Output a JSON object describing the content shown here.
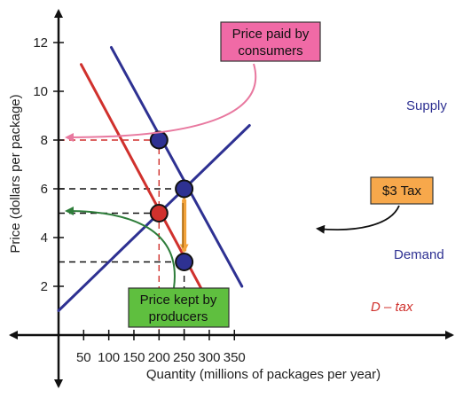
{
  "chart_data": {
    "type": "line",
    "xlabel": "Quantity (millions of packages per year)",
    "ylabel": "Price (dollars per package)",
    "xlim": [
      0,
      380
    ],
    "ylim": [
      0,
      13
    ],
    "x_ticks": [
      50,
      100,
      150,
      200,
      250,
      300,
      350
    ],
    "y_ticks": [
      2,
      4,
      6,
      8,
      10,
      12
    ],
    "series": [
      {
        "name": "Supply",
        "color": "#2e3192",
        "points": [
          [
            0,
            1
          ],
          [
            380,
            8.6
          ]
        ]
      },
      {
        "name": "Demand",
        "color": "#2e3192",
        "points": [
          [
            105,
            11.8
          ],
          [
            365,
            2.0
          ]
        ]
      },
      {
        "name": "D – tax",
        "color": "#d0312d",
        "points": [
          [
            45,
            11.1
          ],
          [
            305,
            1.1
          ]
        ]
      }
    ],
    "points": [
      {
        "x": 200,
        "y": 8,
        "fill": "#2e3192"
      },
      {
        "x": 200,
        "y": 5,
        "fill": "#d0312d"
      },
      {
        "x": 250,
        "y": 6,
        "fill": "#2e3192"
      },
      {
        "x": 250,
        "y": 3,
        "fill": "#2e3192"
      }
    ],
    "guides": [
      {
        "from": [
          0,
          8
        ],
        "to": [
          200,
          8
        ],
        "color": "#d0312d"
      },
      {
        "from": [
          200,
          0
        ],
        "to": [
          200,
          8
        ],
        "color": "#d0312d"
      },
      {
        "from": [
          0,
          6
        ],
        "to": [
          250,
          6
        ],
        "color": "#111111"
      },
      {
        "from": [
          0,
          5
        ],
        "to": [
          200,
          5
        ],
        "color": "#111111"
      },
      {
        "from": [
          0,
          3
        ],
        "to": [
          250,
          3
        ],
        "color": "#111111"
      },
      {
        "from": [
          250,
          0
        ],
        "to": [
          250,
          3
        ],
        "color": "#111111"
      }
    ],
    "tax_arrow": {
      "x": 250,
      "from": 6,
      "to": 3,
      "color": "#f3a33b"
    },
    "annotations": [
      {
        "id": "price-paid",
        "text": "Price paid by consumers",
        "lines": [
          "Price paid by",
          "consumers"
        ],
        "fill": "#f06aa6"
      },
      {
        "id": "price-kept",
        "text": "Price kept by producers",
        "lines": [
          "Price kept by",
          "producers"
        ],
        "fill": "#5fbf3f"
      },
      {
        "id": "tax",
        "text": "$3 Tax",
        "lines": [
          "$3 Tax"
        ],
        "fill": "#f7a84b"
      }
    ],
    "grid": false,
    "legend": "none"
  }
}
